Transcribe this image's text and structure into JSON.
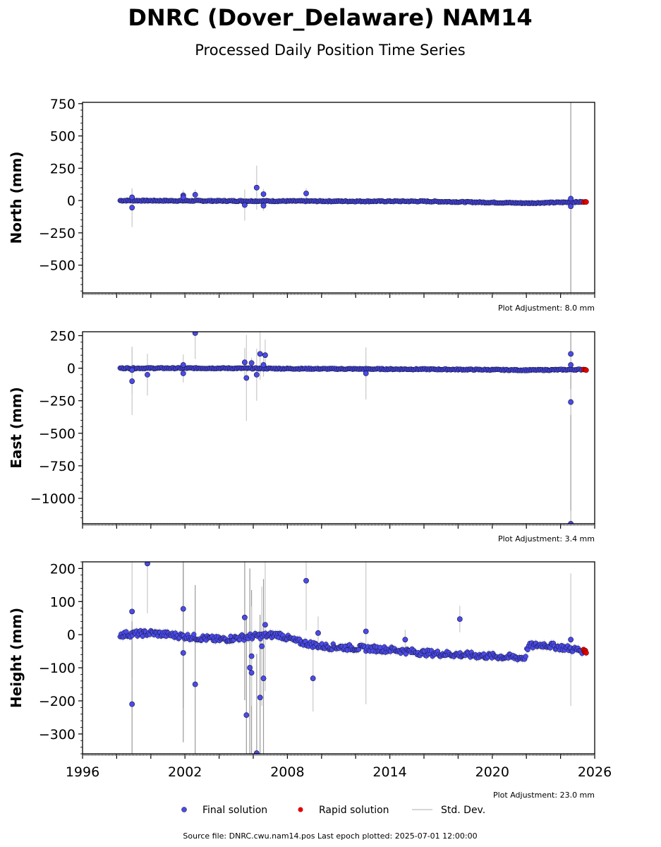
{
  "title": "DNRC (Dover_Delaware) NAM14",
  "subtitle": "Processed Daily Position Time Series",
  "footer": "Source file: DNRC.cwu.nam14.pos  Last epoch plotted: 2025-07-01 12:00:00",
  "legend": {
    "final": "Final solution",
    "rapid": "Rapid solution",
    "std": "Std. Dev."
  },
  "colors": {
    "final": "#4b4bea",
    "rapid": "#e00000",
    "std": "#c8c8c8",
    "outline": "#000000"
  },
  "chart_data": [
    {
      "type": "scatter",
      "ylabel": "North (mm)",
      "adjustment": "Plot Adjustment: 8.0 mm",
      "ylim": [
        -715,
        760
      ],
      "xlim": [
        1996,
        2026
      ],
      "yticks": [
        750,
        500,
        250,
        0,
        -250,
        -500
      ],
      "ytick_labels": [
        "750",
        "500",
        "250",
        "0",
        "−250",
        "−500"
      ],
      "trend": [
        [
          1998.2,
          0
        ],
        [
          2004,
          -3
        ],
        [
          2010,
          -5
        ],
        [
          2016,
          -6
        ],
        [
          2020,
          -15
        ],
        [
          2022,
          -20
        ],
        [
          2025.5,
          -10
        ]
      ],
      "outliers": [
        {
          "x": 1998.9,
          "y": 25,
          "sd": 60
        },
        {
          "x": 1998.9,
          "y": -55,
          "sd": 150
        },
        {
          "x": 2001.9,
          "y": 40,
          "sd": 40
        },
        {
          "x": 2001.9,
          "y": 25,
          "sd": 40
        },
        {
          "x": 2002.6,
          "y": 45,
          "sd": 40
        },
        {
          "x": 2005.5,
          "y": -35,
          "sd": 120
        },
        {
          "x": 2006.2,
          "y": 100,
          "sd": 170
        },
        {
          "x": 2006.6,
          "y": 50,
          "sd": 40
        },
        {
          "x": 2006.6,
          "y": -40,
          "sd": 40
        },
        {
          "x": 2009.1,
          "y": 55,
          "sd": 40
        },
        {
          "x": 2024.6,
          "y": 15,
          "sd": 760
        },
        {
          "x": 2024.6,
          "y": -45,
          "sd": 30
        }
      ],
      "rapid": [
        [
          2025.35,
          -12
        ],
        [
          2025.45,
          -10
        ],
        [
          2025.5,
          -11
        ]
      ]
    },
    {
      "type": "scatter",
      "ylabel": "East (mm)",
      "adjustment": "Plot Adjustment: 3.4 mm",
      "ylim": [
        -1195,
        280
      ],
      "xlim": [
        1996,
        2026
      ],
      "yticks": [
        250,
        0,
        -250,
        -500,
        -750,
        -1000
      ],
      "ytick_labels": [
        "250",
        "0",
        "−250",
        "−500",
        "−750",
        "−1000"
      ],
      "trend": [
        [
          1998.2,
          0
        ],
        [
          2004,
          0
        ],
        [
          2010,
          -5
        ],
        [
          2016,
          -8
        ],
        [
          2020,
          -12
        ],
        [
          2022,
          -15
        ],
        [
          2025.5,
          -10
        ]
      ],
      "outliers": [
        {
          "x": 1998.9,
          "y": -100,
          "sd": 260
        },
        {
          "x": 1998.9,
          "y": -15,
          "sd": 180
        },
        {
          "x": 1999.8,
          "y": -50,
          "sd": 160
        },
        {
          "x": 2001.9,
          "y": 25,
          "sd": 80
        },
        {
          "x": 2001.9,
          "y": -40,
          "sd": 70
        },
        {
          "x": 2002.6,
          "y": 270,
          "sd": 200
        },
        {
          "x": 2005.5,
          "y": 45,
          "sd": 110
        },
        {
          "x": 2005.6,
          "y": -75,
          "sd": 330
        },
        {
          "x": 2005.9,
          "y": 40,
          "sd": 40
        },
        {
          "x": 2006.2,
          "y": -50,
          "sd": 200
        },
        {
          "x": 2006.4,
          "y": 110,
          "sd": 200
        },
        {
          "x": 2006.7,
          "y": 100,
          "sd": 120
        },
        {
          "x": 2006.6,
          "y": 25,
          "sd": 90
        },
        {
          "x": 2012.6,
          "y": -40,
          "sd": 200
        },
        {
          "x": 2024.6,
          "y": 110,
          "sd": 1300
        },
        {
          "x": 2024.6,
          "y": 25,
          "sd": 80
        },
        {
          "x": 2024.6,
          "y": -260,
          "sd": 100
        },
        {
          "x": 2024.6,
          "y": -1195,
          "sd": 100
        }
      ],
      "rapid": [
        [
          2025.35,
          -10
        ],
        [
          2025.45,
          -12
        ],
        [
          2025.5,
          -15
        ]
      ]
    },
    {
      "type": "scatter",
      "ylabel": "Height (mm)",
      "adjustment": "Plot Adjustment: 23.0 mm",
      "ylim": [
        -360,
        220
      ],
      "xlim": [
        1996,
        2026
      ],
      "yticks": [
        200,
        100,
        0,
        -100,
        -200,
        -300
      ],
      "ytick_labels": [
        "200",
        "100",
        "0",
        "−100",
        "−200",
        "−300"
      ],
      "xticks": [
        1996,
        2002,
        2008,
        2014,
        2020,
        2026
      ],
      "xtick_labels": [
        "1996",
        "2002",
        "2008",
        "2014",
        "2020",
        "2026"
      ],
      "trend": [
        [
          1998.2,
          0
        ],
        [
          2000,
          5
        ],
        [
          2002,
          -5
        ],
        [
          2004,
          -15
        ],
        [
          2006,
          -5
        ],
        [
          2007.5,
          0
        ],
        [
          2008.5,
          -20
        ],
        [
          2010,
          -35
        ],
        [
          2012,
          -40
        ],
        [
          2014,
          -45
        ],
        [
          2016,
          -55
        ],
        [
          2018,
          -60
        ],
        [
          2020,
          -65
        ],
        [
          2021.9,
          -70
        ],
        [
          2022.1,
          -35
        ],
        [
          2023,
          -30
        ],
        [
          2025.5,
          -50
        ]
      ],
      "outliers": [
        {
          "x": 1998.9,
          "y": 70,
          "sd": 200
        },
        {
          "x": 1998.9,
          "y": -210,
          "sd": 250
        },
        {
          "x": 1999.8,
          "y": 215,
          "sd": 150
        },
        {
          "x": 2001.9,
          "y": 78,
          "sd": 300
        },
        {
          "x": 2001.9,
          "y": -55,
          "sd": 270
        },
        {
          "x": 2002.6,
          "y": -150,
          "sd": 300
        },
        {
          "x": 2005.5,
          "y": 52,
          "sd": 250
        },
        {
          "x": 2005.6,
          "y": -243,
          "sd": 300
        },
        {
          "x": 2005.8,
          "y": -100,
          "sd": 300
        },
        {
          "x": 2005.9,
          "y": -115,
          "sd": 250
        },
        {
          "x": 2005.9,
          "y": -65,
          "sd": 150
        },
        {
          "x": 2006.2,
          "y": -358,
          "sd": 300
        },
        {
          "x": 2006.4,
          "y": -190,
          "sd": 250
        },
        {
          "x": 2006.5,
          "y": -35,
          "sd": 180
        },
        {
          "x": 2006.6,
          "y": -132,
          "sd": 300
        },
        {
          "x": 2006.7,
          "y": 30,
          "sd": 200
        },
        {
          "x": 2009.1,
          "y": 163,
          "sd": 150
        },
        {
          "x": 2009.5,
          "y": -132,
          "sd": 100
        },
        {
          "x": 2009.8,
          "y": 5,
          "sd": 50
        },
        {
          "x": 2012.6,
          "y": 10,
          "sd": 220
        },
        {
          "x": 2014.9,
          "y": -15,
          "sd": 30
        },
        {
          "x": 2018.1,
          "y": 47,
          "sd": 40
        },
        {
          "x": 2024.6,
          "y": -15,
          "sd": 200
        }
      ],
      "rapid": [
        [
          2025.35,
          -45
        ],
        [
          2025.4,
          -52
        ],
        [
          2025.45,
          -48
        ],
        [
          2025.5,
          -55
        ]
      ]
    }
  ]
}
